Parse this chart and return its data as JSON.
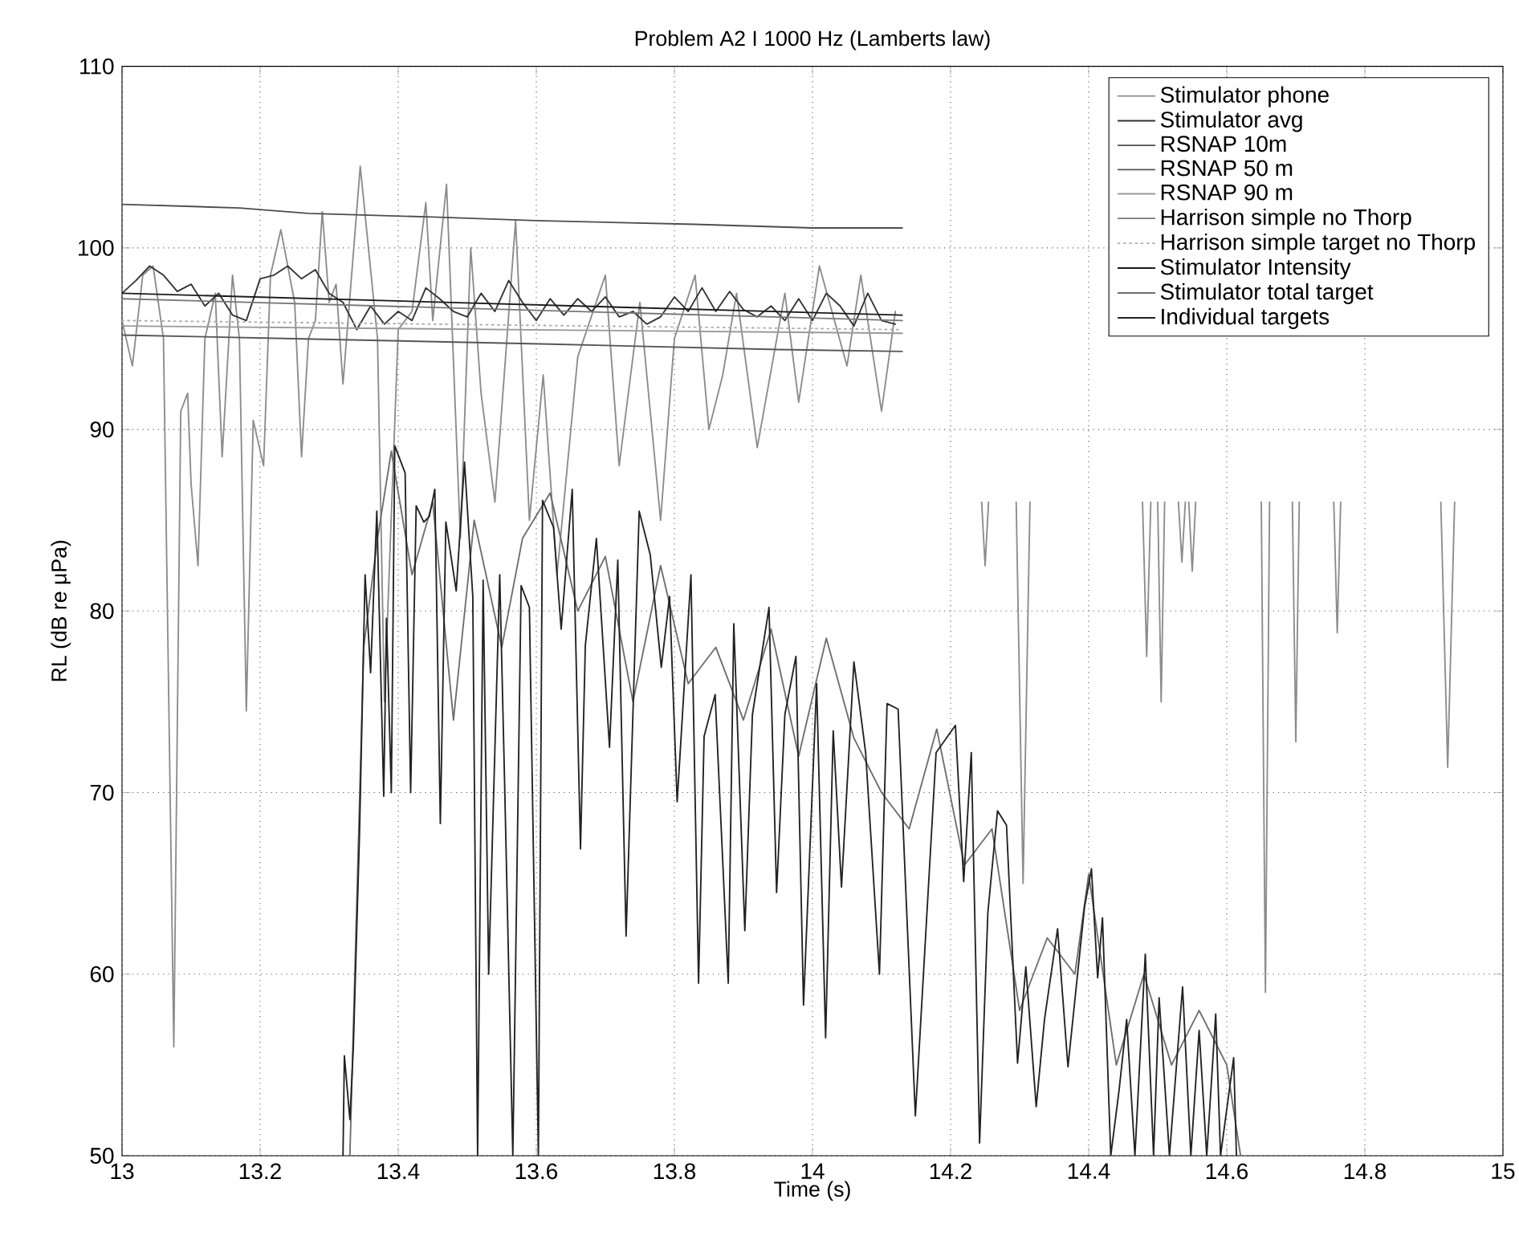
{
  "chart_data": {
    "type": "line",
    "title": "Problem A2 I 1000 Hz (Lamberts law)",
    "xlabel": "Time (s)",
    "ylabel": "RL (dB re μPa)",
    "xlim": [
      13,
      15
    ],
    "xticks": [
      13,
      13.2,
      13.4,
      13.6,
      13.8,
      14,
      14.2,
      14.4,
      14.6,
      14.8,
      15
    ],
    "ylim": [
      50,
      110
    ],
    "yticks": [
      50,
      60,
      70,
      80,
      90,
      100,
      110
    ],
    "grid": true,
    "legend": "top right",
    "series": [
      {
        "name": "Stimulator phone",
        "color": "#8c8c8c",
        "line_style": "solid",
        "x": [
          13.0,
          13.015,
          13.03,
          13.045,
          13.06,
          13.075,
          13.085,
          13.095,
          13.1,
          13.11,
          13.12,
          13.135,
          13.145,
          13.16,
          13.17,
          13.18,
          13.19,
          13.205,
          13.215,
          13.23,
          13.25,
          13.26,
          13.27,
          13.28,
          13.29,
          13.3,
          13.31,
          13.32,
          13.345,
          13.37,
          13.38,
          13.4,
          13.42,
          13.44,
          13.45,
          13.47,
          13.49,
          13.505,
          13.52,
          13.54,
          13.57,
          13.59,
          13.61,
          13.63,
          13.66,
          13.7,
          13.72,
          13.75,
          13.78,
          13.8,
          13.83,
          13.85,
          13.87,
          13.89,
          13.92,
          13.96,
          13.98,
          14.01,
          14.05,
          14.07,
          14.1,
          14.12,
          14.13,
          14.245,
          14.25,
          14.255,
          14.26,
          14.295,
          14.305,
          14.315,
          14.32,
          14.478,
          14.484,
          14.49,
          14.495,
          14.5,
          14.505,
          14.51,
          14.515,
          14.53,
          14.535,
          14.54,
          14.542,
          14.545,
          14.55,
          14.555,
          14.56,
          14.65,
          14.656,
          14.662,
          14.67,
          14.695,
          14.7,
          14.705,
          14.71,
          14.755,
          14.76,
          14.765,
          14.77,
          14.91,
          14.92,
          14.93
        ],
        "values": [
          96,
          93.5,
          98.5,
          99,
          95,
          56,
          91,
          92,
          87,
          82.5,
          95,
          97.5,
          88.5,
          98.5,
          95,
          74.5,
          90.5,
          88,
          98.5,
          101,
          97,
          88.5,
          95,
          96,
          102,
          97,
          98,
          92.5,
          104.5,
          95,
          75,
          95.5,
          96.5,
          102.5,
          96,
          103.5,
          84,
          100,
          92,
          86,
          101.5,
          85,
          93,
          82,
          94,
          98.5,
          88,
          97,
          85,
          95,
          98.5,
          90,
          93,
          97.5,
          89,
          97.5,
          91.5,
          99,
          93.5,
          98.5,
          91,
          96.5,
          null,
          86,
          82.5,
          86,
          null,
          86,
          65,
          86,
          null,
          86,
          77.5,
          86,
          null,
          86,
          75,
          86,
          null,
          86,
          82.7,
          86,
          null,
          86,
          82.2,
          86,
          null,
          86,
          59,
          86,
          null,
          86,
          72.8,
          86,
          null,
          86,
          78.8,
          86,
          null,
          86,
          71.4,
          86
        ]
      },
      {
        "name": "Stimulator avg",
        "color": "#333333",
        "line_style": "solid",
        "x": [
          13.0,
          13.02,
          13.04,
          13.06,
          13.08,
          13.1,
          13.12,
          13.14,
          13.16,
          13.18,
          13.2,
          13.22,
          13.24,
          13.26,
          13.28,
          13.3,
          13.32,
          13.34,
          13.36,
          13.38,
          13.4,
          13.42,
          13.44,
          13.46,
          13.48,
          13.5,
          13.52,
          13.54,
          13.56,
          13.58,
          13.6,
          13.62,
          13.64,
          13.66,
          13.68,
          13.7,
          13.72,
          13.74,
          13.76,
          13.78,
          13.8,
          13.82,
          13.84,
          13.86,
          13.88,
          13.9,
          13.92,
          13.94,
          13.96,
          13.98,
          14.0,
          14.02,
          14.04,
          14.06,
          14.08,
          14.1,
          14.12
        ],
        "values": [
          97.5,
          98.2,
          99,
          98.5,
          97.6,
          98,
          96.8,
          97.5,
          96.3,
          96,
          98.3,
          98.5,
          99,
          98.3,
          98.8,
          97.5,
          97,
          95.5,
          96.8,
          95.8,
          96.5,
          96,
          97.8,
          97.2,
          96.5,
          96.2,
          97.5,
          96.5,
          98.2,
          97,
          96,
          97.2,
          96.3,
          97.2,
          96.5,
          97.3,
          96.2,
          96.5,
          95.8,
          96.2,
          97.3,
          96.5,
          97.8,
          96.5,
          97.6,
          96.6,
          96.2,
          96.8,
          96,
          97.2,
          96,
          97.5,
          96.8,
          95.7,
          97.5,
          96,
          95.8
        ]
      },
      {
        "name": "RSNAP 10m",
        "color": "#4d4d4d",
        "line_style": "solid",
        "x": [
          13.0,
          13.17,
          13.27,
          13.45,
          13.6,
          13.83,
          14.0,
          14.13
        ],
        "values": [
          102.4,
          102.2,
          101.9,
          101.7,
          101.5,
          101.3,
          101.1,
          101.1
        ]
      },
      {
        "name": "RSNAP 50 m",
        "color": "#555555",
        "line_style": "solid",
        "x": [
          13.0,
          13.25,
          13.62,
          13.95,
          14.13
        ],
        "values": [
          95.2,
          95.0,
          94.7,
          94.4,
          94.3
        ]
      },
      {
        "name": "RSNAP 90 m",
        "color": "#999999",
        "line_style": "solid",
        "x": [
          13.0,
          14.13
        ],
        "values": [
          95.7,
          95.3
        ]
      },
      {
        "name": "Harrison simple no Thorp",
        "color": "#777777",
        "line_style": "solid",
        "x": [
          13.0,
          14.13
        ],
        "values": [
          97.2,
          96.0
        ]
      },
      {
        "name": "Harrison simple target no Thorp",
        "color": "#aaaaaa",
        "line_style": "dotted",
        "x": [
          13.0,
          14.13
        ],
        "values": [
          96.0,
          95.5
        ]
      },
      {
        "name": "Stimulator Intensity",
        "color": "#1a1a1a",
        "line_style": "solid",
        "x": [
          13.0,
          14.13
        ],
        "values": [
          97.5,
          96.3
        ]
      },
      {
        "name": "Stimulator total target",
        "color": "#6e6e6e",
        "line_style": "solid",
        "x": [
          13.33,
          13.35,
          13.37,
          13.39,
          13.42,
          13.45,
          13.48,
          13.51,
          13.55,
          13.58,
          13.62,
          13.66,
          13.7,
          13.74,
          13.78,
          13.82,
          13.86,
          13.9,
          13.94,
          13.98,
          14.02,
          14.06,
          14.1,
          14.14,
          14.18,
          14.22,
          14.26,
          14.3,
          14.34,
          14.38,
          14.4,
          14.44,
          14.48,
          14.52,
          14.56,
          14.6,
          14.62
        ],
        "values": [
          50,
          78,
          84,
          88.8,
          82,
          86,
          74,
          85,
          78,
          84,
          86.5,
          80,
          83,
          75,
          82.5,
          76,
          78,
          74,
          79,
          72,
          78.5,
          73,
          70,
          68,
          73.5,
          66,
          68,
          58,
          62,
          60,
          65.5,
          55,
          60,
          55,
          58,
          55,
          50
        ]
      },
      {
        "name": "Individual targets",
        "color": "#222222",
        "line_style": "solid",
        "x": [
          13.32,
          13.322,
          13.33,
          13.335,
          13.344,
          13.352,
          13.36,
          13.369,
          13.379,
          13.383,
          13.39,
          13.395,
          13.41,
          13.418,
          13.426,
          13.437,
          13.445,
          13.453,
          13.461,
          13.469,
          13.484,
          13.496,
          13.508,
          13.515,
          13.523,
          13.531,
          13.547,
          13.554,
          13.566,
          13.578,
          13.59,
          13.603,
          13.609,
          13.625,
          13.636,
          13.652,
          13.664,
          13.671,
          13.687,
          13.706,
          13.718,
          13.73,
          13.749,
          13.765,
          13.781,
          13.793,
          13.804,
          13.824,
          13.835,
          13.843,
          13.859,
          13.878,
          13.886,
          13.902,
          13.913,
          13.937,
          13.948,
          13.96,
          13.976,
          13.987,
          14.006,
          14.019,
          14.03,
          14.042,
          14.06,
          14.077,
          14.097,
          14.108,
          14.124,
          14.149,
          14.179,
          14.207,
          14.219,
          14.23,
          14.242,
          14.254,
          14.268,
          14.281,
          14.297,
          14.309,
          14.324,
          14.336,
          14.355,
          14.37,
          14.394,
          14.404,
          14.413,
          14.42,
          14.432,
          14.444,
          14.455,
          14.467,
          14.482,
          14.494,
          14.502,
          14.517,
          14.536,
          14.548,
          14.56,
          14.571,
          14.584,
          14.591,
          14.61,
          14.614
        ],
        "values": [
          50,
          55.5,
          52,
          56,
          67.8,
          82,
          76.6,
          85.5,
          69.8,
          79.6,
          70,
          89.1,
          87.6,
          70,
          85.8,
          84.9,
          85.2,
          86.7,
          68.3,
          84.9,
          81.1,
          88.2,
          80.8,
          50,
          81.7,
          60,
          82,
          70.7,
          50,
          81.4,
          80.2,
          50,
          86.1,
          84.6,
          79,
          86.7,
          66.9,
          78.1,
          84,
          72.5,
          82.8,
          62.1,
          85.5,
          83.1,
          76.9,
          80.8,
          69.5,
          82,
          59.5,
          73.1,
          75.4,
          59.5,
          79.3,
          62.4,
          74.3,
          80.2,
          64.5,
          74.3,
          77.5,
          58.3,
          76,
          56.5,
          73.4,
          64.8,
          77.2,
          72.2,
          60,
          74.9,
          74.6,
          52.2,
          72.2,
          73.7,
          65.1,
          72.2,
          50.7,
          63.4,
          69,
          68.2,
          55.1,
          60.4,
          52.7,
          57.5,
          62.5,
          54.9,
          63.7,
          65.8,
          59.8,
          63.1,
          50,
          53.6,
          57.5,
          50,
          61.1,
          50,
          58.7,
          50,
          59.3,
          50,
          56.9,
          50,
          57.8,
          50,
          55.4,
          50
        ]
      }
    ]
  }
}
